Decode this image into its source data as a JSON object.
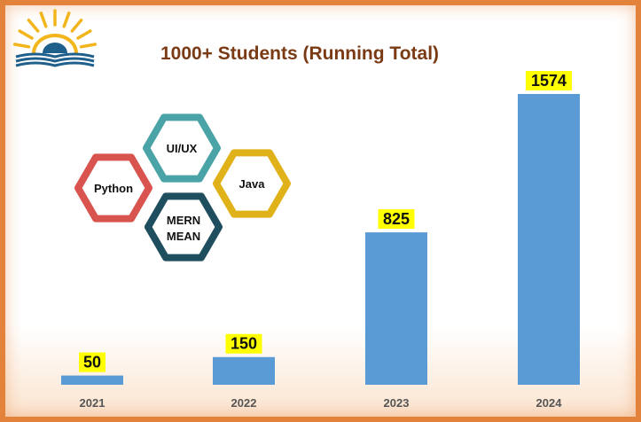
{
  "title": "1000+ Students (Running Total)",
  "colors": {
    "bar": "#5b9bd5",
    "label_bg": "#ffff00",
    "frame": "#e3823a",
    "title": "#7a3a14",
    "logo_sun": "#f2b51c",
    "logo_waves": "#1f5f8b"
  },
  "chart_data": {
    "type": "bar",
    "title": "1000+ Students (Running Total)",
    "categories": [
      "2021",
      "2022",
      "2023",
      "2024"
    ],
    "values": [
      50,
      150,
      825,
      1574
    ],
    "xlabel": "",
    "ylabel": "",
    "ylim": [
      0,
      1574
    ],
    "grid": false,
    "data_labels": true
  },
  "hexagons": [
    {
      "label": "UI/UX",
      "color": "#4aa3a7"
    },
    {
      "label": "Python",
      "color": "#d9534f"
    },
    {
      "label": "Java",
      "color": "#e0b21a"
    },
    {
      "label": "MERN",
      "label2": "MEAN",
      "color": "#1f4e5f"
    }
  ],
  "logo": {
    "icon": "sunrise-open-book-logo"
  }
}
